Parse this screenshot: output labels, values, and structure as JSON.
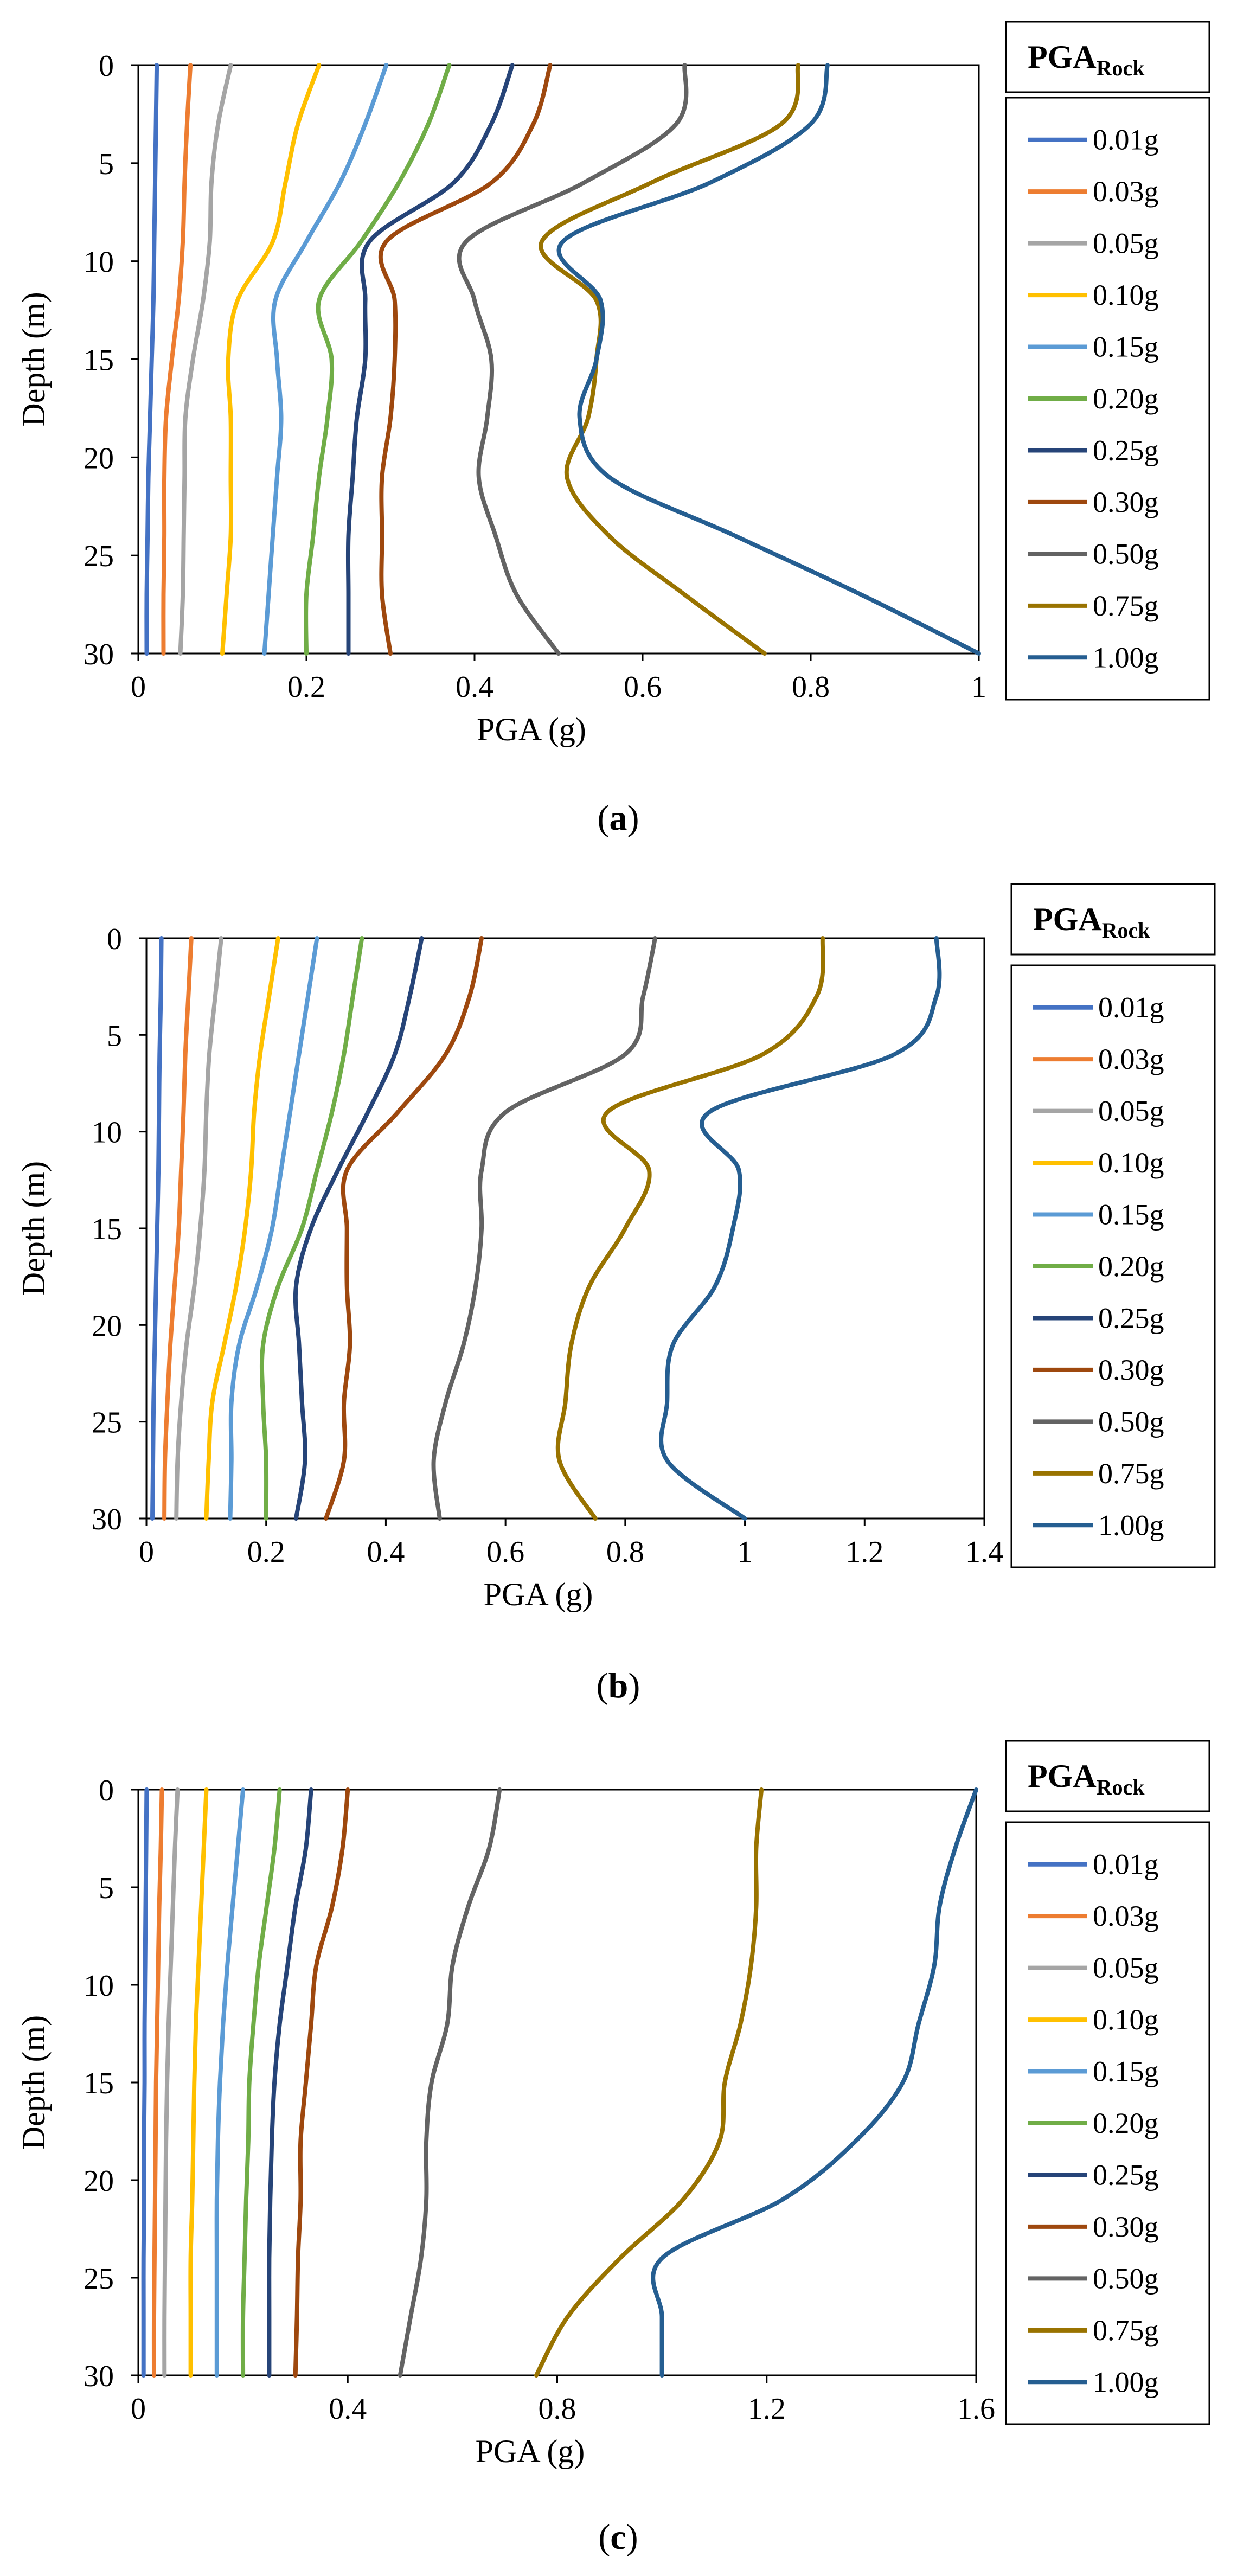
{
  "figure": {
    "panels": [
      {
        "caption_open": "(",
        "caption_letter": "a",
        "caption_close": ")"
      },
      {
        "caption_open": "(",
        "caption_letter": "b",
        "caption_close": ")"
      },
      {
        "caption_open": "(",
        "caption_letter": "c",
        "caption_close": ")"
      }
    ]
  },
  "chart_data": [
    {
      "type": "line",
      "title": "",
      "xlabel": "PGA (g)",
      "ylabel": "Depth (m)",
      "xlim": [
        0,
        1
      ],
      "ylim": [
        30,
        0
      ],
      "xticks": [
        0,
        0.2,
        0.4,
        0.6,
        0.8,
        1
      ],
      "xtick_labels": [
        "0",
        "0.2",
        "0.4",
        "0.6",
        "0.8",
        "1"
      ],
      "yticks": [
        0,
        5,
        10,
        15,
        20,
        25,
        30
      ],
      "ytick_labels": [
        "0",
        "5",
        "10",
        "15",
        "20",
        "25",
        "30"
      ],
      "grid": false,
      "legend_title": "PGA",
      "legend_title_sub": "Rock",
      "legend_position": "right",
      "depth": [
        0,
        3,
        6,
        9,
        12,
        15,
        18,
        21,
        24,
        27,
        30
      ],
      "series": [
        {
          "name": "0.01g",
          "color": "#4472C4",
          "pga": [
            0.022,
            0.021,
            0.02,
            0.019,
            0.018,
            0.016,
            0.014,
            0.012,
            0.011,
            0.01,
            0.01
          ]
        },
        {
          "name": "0.03g",
          "color": "#ED7D31",
          "pga": [
            0.062,
            0.058,
            0.055,
            0.053,
            0.048,
            0.04,
            0.033,
            0.031,
            0.031,
            0.03,
            0.03
          ]
        },
        {
          "name": "0.05g",
          "color": "#A5A5A5",
          "pga": [
            0.11,
            0.095,
            0.087,
            0.085,
            0.077,
            0.065,
            0.056,
            0.055,
            0.054,
            0.053,
            0.05
          ]
        },
        {
          "name": "0.10g",
          "color": "#FFC000",
          "pga": [
            0.215,
            0.19,
            0.175,
            0.16,
            0.118,
            0.107,
            0.11,
            0.11,
            0.11,
            0.105,
            0.1
          ]
        },
        {
          "name": "0.15g",
          "color": "#5B9BD5",
          "pga": [
            0.295,
            0.27,
            0.24,
            0.2,
            0.163,
            0.165,
            0.17,
            0.165,
            0.16,
            0.155,
            0.15
          ]
        },
        {
          "name": "0.20g",
          "color": "#70AD47",
          "pga": [
            0.37,
            0.345,
            0.31,
            0.265,
            0.215,
            0.23,
            0.225,
            0.215,
            0.208,
            0.2,
            0.2
          ]
        },
        {
          "name": "0.25g",
          "color": "#264478",
          "pga": [
            0.445,
            0.42,
            0.375,
            0.275,
            0.27,
            0.27,
            0.26,
            0.255,
            0.25,
            0.25,
            0.25
          ]
        },
        {
          "name": "0.30g",
          "color": "#9E480E",
          "pga": [
            0.49,
            0.47,
            0.42,
            0.295,
            0.305,
            0.305,
            0.3,
            0.29,
            0.29,
            0.29,
            0.3
          ]
        },
        {
          "name": "0.50g",
          "color": "#636363",
          "pga": [
            0.65,
            0.64,
            0.53,
            0.39,
            0.4,
            0.42,
            0.415,
            0.405,
            0.425,
            0.45,
            0.5
          ]
        },
        {
          "name": "0.75g",
          "color": "#997300",
          "pga": [
            0.785,
            0.765,
            0.61,
            0.48,
            0.545,
            0.545,
            0.535,
            0.51,
            0.56,
            0.65,
            0.745
          ]
        },
        {
          "name": "1.00g",
          "color": "#255E91",
          "pga": [
            0.82,
            0.8,
            0.68,
            0.505,
            0.55,
            0.545,
            0.525,
            0.56,
            0.71,
            0.86,
            1.0
          ]
        }
      ]
    },
    {
      "type": "line",
      "title": "",
      "xlabel": "PGA (g)",
      "ylabel": "Depth (m)",
      "xlim": [
        0,
        1.4
      ],
      "ylim": [
        30,
        0
      ],
      "xticks": [
        0,
        0.2,
        0.4,
        0.6,
        0.8,
        1,
        1.2,
        1.4
      ],
      "xtick_labels": [
        "0",
        "0.2",
        "0.4",
        "0.6",
        "0.8",
        "1",
        "1.2",
        "1.4"
      ],
      "yticks": [
        0,
        5,
        10,
        15,
        20,
        25,
        30
      ],
      "ytick_labels": [
        "0",
        "5",
        "10",
        "15",
        "20",
        "25",
        "30"
      ],
      "grid": false,
      "legend_title": "PGA",
      "legend_title_sub": "Rock",
      "legend_position": "right",
      "depth": [
        0,
        3,
        6,
        9,
        12,
        15,
        18,
        21,
        24,
        27,
        30
      ],
      "series": [
        {
          "name": "0.01g",
          "color": "#4472C4",
          "pga": [
            0.025,
            0.024,
            0.022,
            0.021,
            0.02,
            0.018,
            0.016,
            0.014,
            0.012,
            0.011,
            0.01
          ]
        },
        {
          "name": "0.03g",
          "color": "#ED7D31",
          "pga": [
            0.075,
            0.07,
            0.065,
            0.062,
            0.058,
            0.054,
            0.047,
            0.04,
            0.035,
            0.031,
            0.03
          ]
        },
        {
          "name": "0.05g",
          "color": "#A5A5A5",
          "pga": [
            0.125,
            0.115,
            0.105,
            0.1,
            0.097,
            0.09,
            0.08,
            0.067,
            0.058,
            0.052,
            0.05
          ]
        },
        {
          "name": "0.10g",
          "color": "#FFC000",
          "pga": [
            0.22,
            0.205,
            0.19,
            0.18,
            0.175,
            0.165,
            0.15,
            0.13,
            0.11,
            0.104,
            0.1
          ]
        },
        {
          "name": "0.15g",
          "color": "#5B9BD5",
          "pga": [
            0.285,
            0.27,
            0.255,
            0.24,
            0.225,
            0.21,
            0.185,
            0.155,
            0.142,
            0.142,
            0.14
          ]
        },
        {
          "name": "0.20g",
          "color": "#70AD47",
          "pga": [
            0.36,
            0.345,
            0.33,
            0.31,
            0.285,
            0.26,
            0.22,
            0.195,
            0.195,
            0.2,
            0.2
          ]
        },
        {
          "name": "0.25g",
          "color": "#264478",
          "pga": [
            0.46,
            0.44,
            0.415,
            0.37,
            0.32,
            0.275,
            0.25,
            0.255,
            0.26,
            0.265,
            0.25
          ]
        },
        {
          "name": "0.30g",
          "color": "#9E480E",
          "pga": [
            0.56,
            0.54,
            0.5,
            0.42,
            0.335,
            0.335,
            0.335,
            0.34,
            0.33,
            0.33,
            0.3
          ]
        },
        {
          "name": "0.50g",
          "color": "#636363",
          "pga": [
            0.85,
            0.83,
            0.8,
            0.6,
            0.56,
            0.56,
            0.55,
            0.53,
            0.5,
            0.48,
            0.49
          ]
        },
        {
          "name": "0.75g",
          "color": "#997300",
          "pga": [
            1.13,
            1.12,
            1.03,
            0.77,
            0.84,
            0.8,
            0.74,
            0.71,
            0.7,
            0.69,
            0.75
          ]
        },
        {
          "name": "1.00g",
          "color": "#255E91",
          "pga": [
            1.32,
            1.32,
            1.25,
            0.94,
            0.99,
            0.98,
            0.95,
            0.88,
            0.87,
            0.87,
            1.0
          ]
        }
      ]
    },
    {
      "type": "line",
      "title": "",
      "xlabel": "PGA (g)",
      "ylabel": "Depth (m)",
      "xlim": [
        0,
        1.6
      ],
      "ylim": [
        30,
        0
      ],
      "xticks": [
        0,
        0.4,
        0.8,
        1.2,
        1.6
      ],
      "xtick_labels": [
        "0",
        "0.4",
        "0.8",
        "1.2",
        "1.6"
      ],
      "yticks": [
        0,
        5,
        10,
        15,
        20,
        25,
        30
      ],
      "ytick_labels": [
        "0",
        "5",
        "10",
        "15",
        "20",
        "25",
        "30"
      ],
      "grid": false,
      "legend_title": "PGA",
      "legend_title_sub": "Rock",
      "legend_position": "right",
      "depth": [
        0,
        3,
        6,
        9,
        12,
        15,
        18,
        21,
        24,
        27,
        30
      ],
      "series": [
        {
          "name": "0.01g",
          "color": "#4472C4",
          "pga": [
            0.016,
            0.015,
            0.014,
            0.013,
            0.012,
            0.012,
            0.011,
            0.011,
            0.01,
            0.01,
            0.01
          ]
        },
        {
          "name": "0.03g",
          "color": "#ED7D31",
          "pga": [
            0.045,
            0.043,
            0.04,
            0.038,
            0.036,
            0.034,
            0.033,
            0.032,
            0.031,
            0.03,
            0.03
          ]
        },
        {
          "name": "0.05g",
          "color": "#A5A5A5",
          "pga": [
            0.075,
            0.07,
            0.066,
            0.062,
            0.058,
            0.055,
            0.053,
            0.052,
            0.051,
            0.05,
            0.05
          ]
        },
        {
          "name": "0.10g",
          "color": "#FFC000",
          "pga": [
            0.13,
            0.125,
            0.12,
            0.115,
            0.11,
            0.107,
            0.105,
            0.103,
            0.1,
            0.1,
            0.1
          ]
        },
        {
          "name": "0.15g",
          "color": "#5B9BD5",
          "pga": [
            0.2,
            0.19,
            0.18,
            0.17,
            0.162,
            0.156,
            0.152,
            0.15,
            0.15,
            0.15,
            0.15
          ]
        },
        {
          "name": "0.20g",
          "color": "#70AD47",
          "pga": [
            0.27,
            0.26,
            0.245,
            0.23,
            0.22,
            0.212,
            0.21,
            0.206,
            0.203,
            0.2,
            0.2
          ]
        },
        {
          "name": "0.25g",
          "color": "#264478",
          "pga": [
            0.33,
            0.32,
            0.3,
            0.285,
            0.27,
            0.26,
            0.255,
            0.252,
            0.25,
            0.25,
            0.25
          ]
        },
        {
          "name": "0.30g",
          "color": "#9E480E",
          "pga": [
            0.4,
            0.39,
            0.37,
            0.34,
            0.33,
            0.32,
            0.31,
            0.31,
            0.305,
            0.303,
            0.3
          ]
        },
        {
          "name": "0.50g",
          "color": "#636363",
          "pga": [
            0.69,
            0.67,
            0.63,
            0.6,
            0.59,
            0.56,
            0.55,
            0.55,
            0.54,
            0.52,
            0.5
          ]
        },
        {
          "name": "0.75g",
          "color": "#997300",
          "pga": [
            1.19,
            1.18,
            1.18,
            1.17,
            1.15,
            1.12,
            1.11,
            1.04,
            0.92,
            0.82,
            0.76
          ]
        },
        {
          "name": "1.00g",
          "color": "#255E91",
          "pga": [
            1.6,
            1.56,
            1.53,
            1.52,
            1.49,
            1.46,
            1.37,
            1.23,
            1.0,
            1.0,
            1.0
          ]
        }
      ]
    }
  ]
}
